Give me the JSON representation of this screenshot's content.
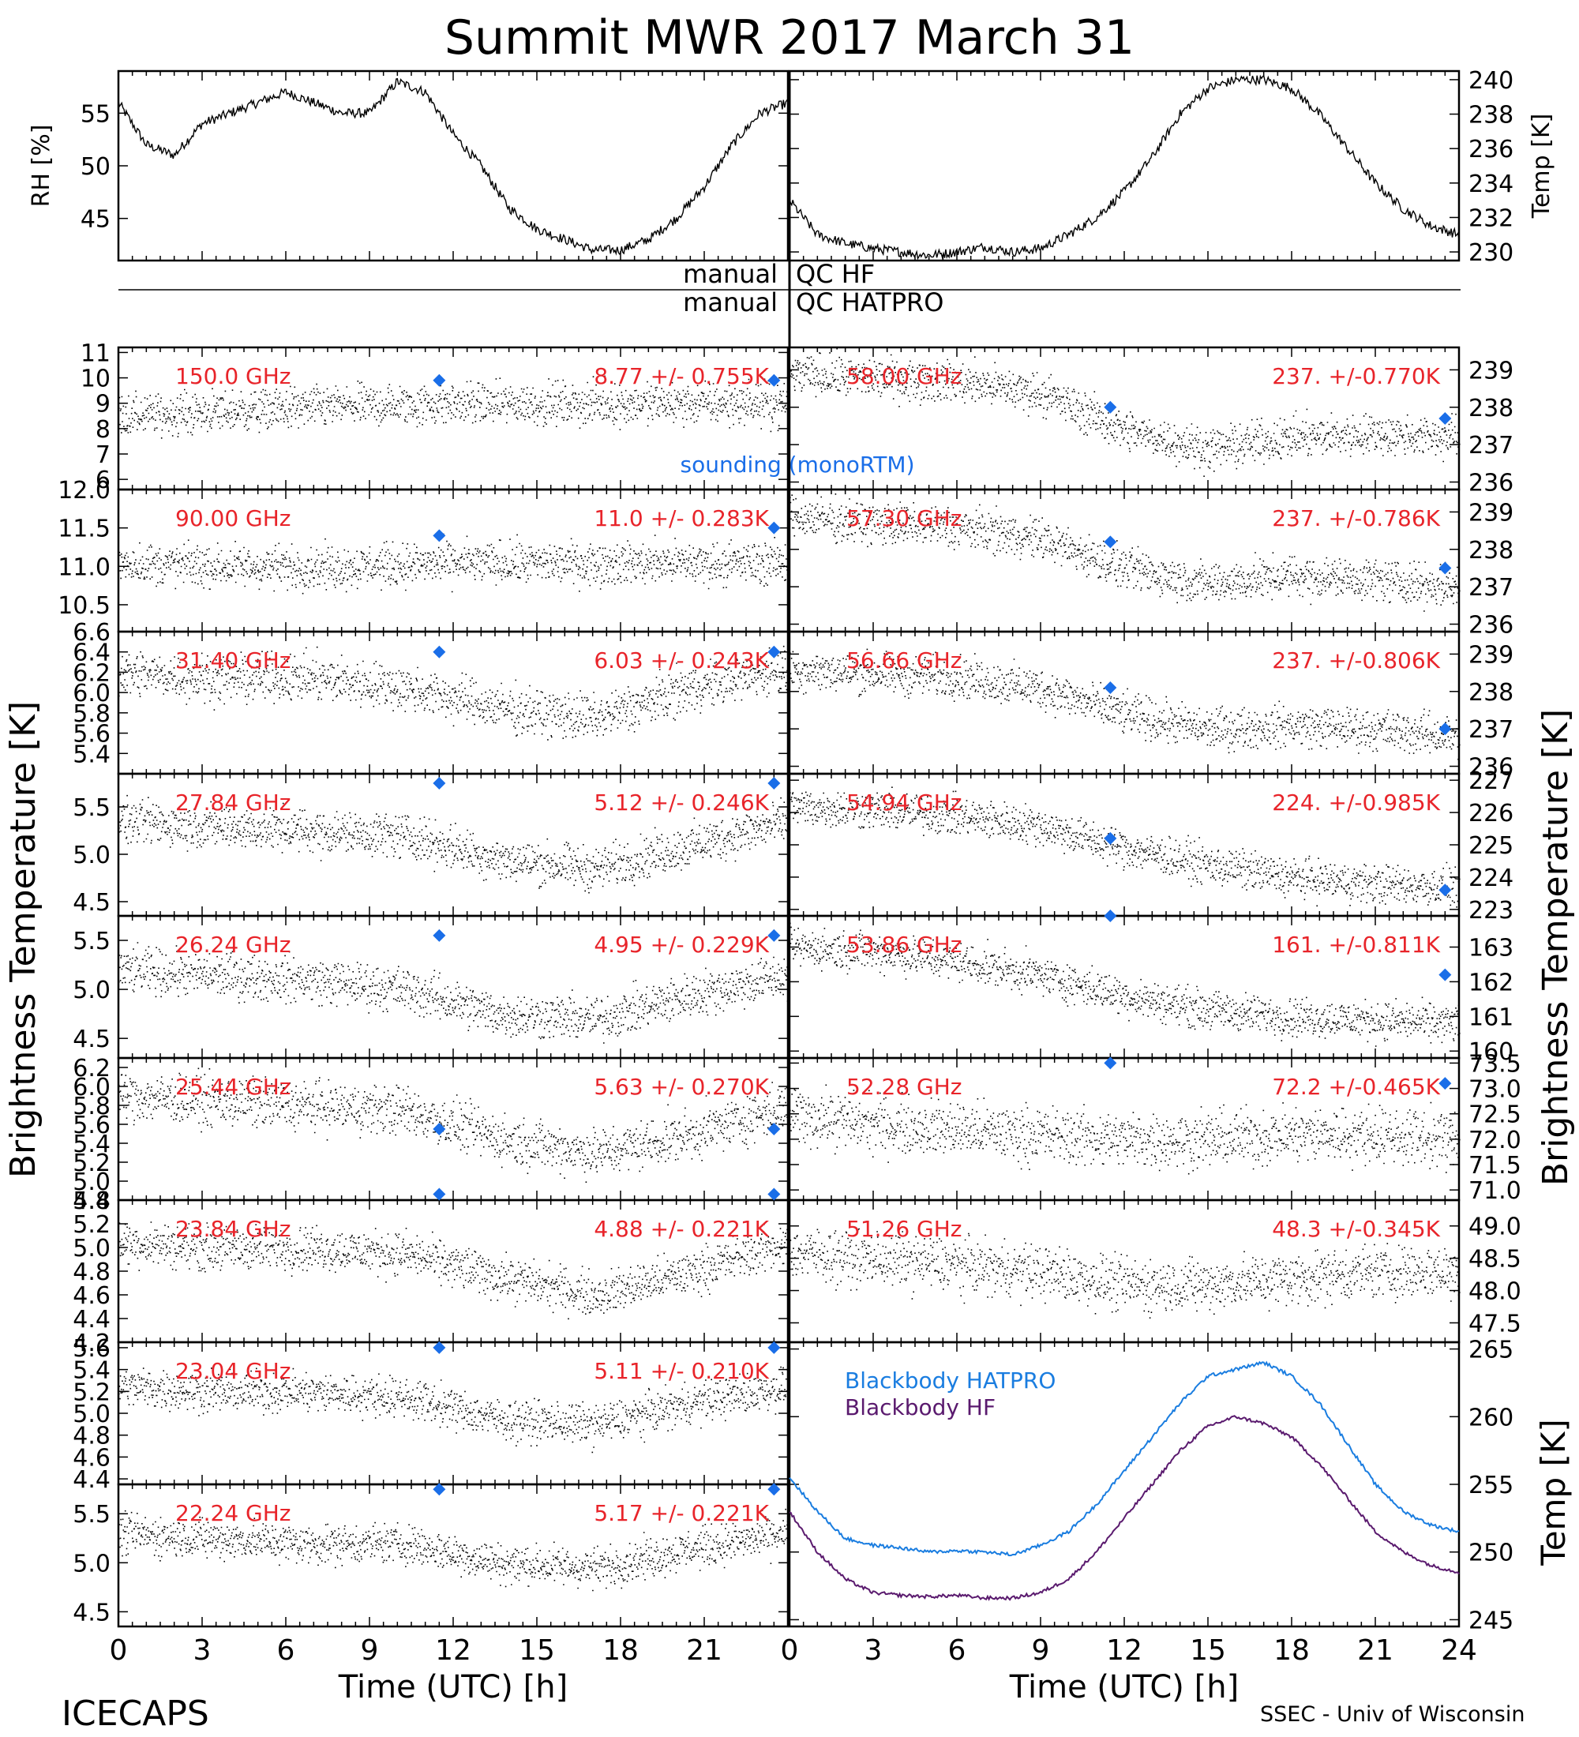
{
  "title": "Summit MWR 2017 March 31",
  "footer": {
    "left": "ICECAPS",
    "right": "SSEC - Univ of Wisconsin"
  },
  "colors": {
    "hatpro_line": "#1a7de0",
    "hf_line": "#5a1a6e",
    "label_red": "#e8242a",
    "sounding": "#1a6ee8",
    "data": "#000000"
  },
  "qc": {
    "left1": "manual",
    "right1": "QC HF",
    "left2": "manual",
    "right2": "QC HATPRO"
  },
  "xaxis": {
    "label": "Time (UTC) [h]",
    "range": [
      0,
      24
    ],
    "ticks_left": [
      "0",
      "3",
      "6",
      "9",
      "12",
      "15",
      "18",
      "21"
    ],
    "ticks_right": [
      "0",
      "3",
      "6",
      "9",
      "12",
      "15",
      "18",
      "21",
      "24"
    ]
  },
  "side_labels": {
    "left": "Brightness Temperature [K]",
    "right": "Brightness Temperature [K]",
    "bb_temp": "Temp [K]",
    "met_rh": "RH [%]",
    "met_temp": "Temp [K]"
  },
  "legend": {
    "sounding": "sounding (monoRTM)",
    "bb_hatpro": "Blackbody HATPRO",
    "bb_hf": "Blackbody HF"
  },
  "chart_data": [
    {
      "type": "line",
      "panel": "met-rh",
      "ylabel": "RH [%]",
      "ylim": [
        41,
        59
      ],
      "ticks": [
        "45",
        "50",
        "55"
      ],
      "x": [
        0,
        1,
        2,
        3,
        4,
        5,
        6,
        7,
        8,
        9,
        10,
        11,
        12,
        13,
        14,
        15,
        16,
        17,
        18,
        19,
        20,
        21,
        22,
        23,
        24
      ],
      "values": [
        56,
        52,
        51,
        54,
        55,
        56,
        57,
        56,
        55,
        55,
        58,
        57,
        53,
        50,
        46,
        44,
        43,
        42,
        42,
        43,
        45,
        48,
        52,
        55,
        56
      ]
    },
    {
      "type": "line",
      "panel": "met-temp",
      "ylabel": "Temp [K]",
      "ylim": [
        229.5,
        240.5
      ],
      "ticks": [
        "230",
        "232",
        "234",
        "236",
        "238",
        "240"
      ],
      "x": [
        0,
        1,
        2,
        3,
        4,
        5,
        6,
        7,
        8,
        9,
        10,
        11,
        12,
        13,
        14,
        15,
        16,
        17,
        18,
        19,
        20,
        21,
        22,
        23,
        24
      ],
      "values": [
        233,
        231,
        230.5,
        230.2,
        230,
        229.8,
        230,
        230.3,
        230,
        230.2,
        231,
        232,
        233.5,
        235.5,
        238,
        239.5,
        240,
        240,
        239.5,
        238,
        236,
        234,
        232.5,
        231.5,
        231
      ]
    },
    {
      "type": "scatter",
      "panel": "150.0",
      "label": "150.0 GHz",
      "stats": "8.77 +/- 0.755K",
      "ylim": [
        5.6,
        11.2
      ],
      "ticks": [
        "6",
        "7",
        "8",
        "9",
        "10",
        "11"
      ],
      "base": [
        8.5,
        8.7,
        8.9,
        9.0,
        9.0,
        9.0,
        9.0
      ],
      "noise": 0.9,
      "sounding": [
        9.9,
        9.9
      ]
    },
    {
      "type": "scatter",
      "panel": "90.00",
      "label": "90.00 GHz",
      "stats": "11.0 +/- 0.283K",
      "ylim": [
        10.15,
        12.0
      ],
      "ticks": [
        "10.5",
        "11.0",
        "11.5",
        "12.0"
      ],
      "base": [
        11.05,
        11.0,
        11.0,
        11.05,
        11.05,
        11.05,
        11.05
      ],
      "noise": 0.3,
      "sounding": [
        11.4,
        11.5
      ]
    },
    {
      "type": "scatter",
      "panel": "31.40",
      "label": "31.40 GHz",
      "stats": "6.03 +/- 0.243K",
      "ylim": [
        5.2,
        6.6
      ],
      "ticks": [
        "5.4",
        "5.6",
        "5.8",
        "6.0",
        "6.2",
        "6.4",
        "6.6"
      ],
      "base": [
        6.2,
        6.15,
        6.15,
        6.05,
        5.85,
        5.75,
        6.05,
        6.25
      ],
      "noise": 0.25,
      "sounding": [
        6.4,
        6.4
      ]
    },
    {
      "type": "scatter",
      "panel": "27.84",
      "label": "27.84 GHz",
      "stats": "5.12 +/- 0.246K",
      "ylim": [
        4.35,
        5.85
      ],
      "ticks": [
        "4.5",
        "5.0",
        "5.5"
      ],
      "base": [
        5.35,
        5.3,
        5.25,
        5.2,
        4.95,
        4.85,
        5.1,
        5.35
      ],
      "noise": 0.25,
      "sounding": [
        5.75,
        5.75
      ]
    },
    {
      "type": "scatter",
      "panel": "26.24",
      "label": "26.24 GHz",
      "stats": "4.95 +/- 0.229K",
      "ylim": [
        4.3,
        5.75
      ],
      "ticks": [
        "4.5",
        "5.0",
        "5.5"
      ],
      "base": [
        5.2,
        5.15,
        5.1,
        5.0,
        4.75,
        4.7,
        4.95,
        5.15
      ],
      "noise": 0.25,
      "sounding": [
        5.55,
        5.55
      ]
    },
    {
      "type": "scatter",
      "panel": "25.44",
      "label": "25.44 GHz",
      "stats": "5.63 +/- 0.270K",
      "ylim": [
        4.8,
        6.3
      ],
      "ticks": [
        "4.8",
        "5.0",
        "5.2",
        "5.4",
        "5.6",
        "5.8",
        "6.0",
        "6.2"
      ],
      "base": [
        5.9,
        5.85,
        5.8,
        5.75,
        5.45,
        5.3,
        5.5,
        5.8
      ],
      "noise": 0.28,
      "sounding": [
        5.55,
        5.55
      ]
    },
    {
      "type": "scatter",
      "panel": "23.84",
      "label": "23.84 GHz",
      "stats": "4.88 +/- 0.221K",
      "ylim": [
        4.2,
        5.4
      ],
      "ticks": [
        "4.2",
        "4.4",
        "4.6",
        "4.8",
        "5.0",
        "5.2",
        "5.4"
      ],
      "base": [
        5.05,
        5.0,
        5.0,
        4.95,
        4.75,
        4.6,
        4.8,
        5.05
      ],
      "noise": 0.2,
      "sounding": [
        5.45,
        5.45
      ]
    },
    {
      "type": "scatter",
      "panel": "23.04",
      "label": "23.04 GHz",
      "stats": "5.11 +/- 0.210K",
      "ylim": [
        4.35,
        5.65
      ],
      "ticks": [
        "4.4",
        "4.6",
        "4.8",
        "5.0",
        "5.2",
        "5.4",
        "5.6"
      ],
      "base": [
        5.25,
        5.2,
        5.2,
        5.15,
        4.95,
        4.9,
        5.1,
        5.25
      ],
      "noise": 0.2,
      "sounding": [
        5.6,
        5.6
      ]
    },
    {
      "type": "scatter",
      "panel": "22.24",
      "label": "22.24 GHz",
      "stats": "5.17 +/- 0.221K",
      "ylim": [
        4.35,
        5.8
      ],
      "ticks": [
        "4.5",
        "5.0",
        "5.5"
      ],
      "base": [
        5.3,
        5.25,
        5.2,
        5.2,
        5.0,
        4.95,
        5.15,
        5.3
      ],
      "noise": 0.22,
      "sounding": [
        5.75,
        5.75
      ]
    },
    {
      "type": "scatter",
      "panel": "58.00",
      "label": "58.00 GHz",
      "stats": "237. +/-0.770K",
      "ylim": [
        235.8,
        239.6
      ],
      "ticks": [
        "236",
        "237",
        "238",
        "239"
      ],
      "base": [
        238.9,
        238.8,
        238.7,
        238.4,
        237.4,
        236.9,
        237.2,
        237.3,
        237.2
      ],
      "noise": 0.6,
      "sounding": [
        238.0,
        237.7
      ]
    },
    {
      "type": "scatter",
      "panel": "57.30",
      "label": "57.30 GHz",
      "stats": "237. +/-0.786K",
      "ylim": [
        235.8,
        239.6
      ],
      "ticks": [
        "236",
        "237",
        "238",
        "239"
      ],
      "base": [
        238.9,
        238.7,
        238.6,
        238.3,
        237.5,
        237.1,
        237.3,
        237.2,
        237.0
      ],
      "noise": 0.6,
      "sounding": [
        238.2,
        237.5
      ]
    },
    {
      "type": "scatter",
      "panel": "56.66",
      "label": "56.66 GHz",
      "stats": "237. +/-0.806K",
      "ylim": [
        235.8,
        239.6
      ],
      "ticks": [
        "236",
        "237",
        "238",
        "239"
      ],
      "base": [
        238.6,
        238.5,
        238.4,
        238.1,
        237.4,
        237.0,
        237.1,
        237.0,
        236.8
      ],
      "noise": 0.6,
      "sounding": [
        238.1,
        237.0
      ]
    },
    {
      "type": "scatter",
      "panel": "54.94",
      "label": "54.94 GHz",
      "stats": "224. +/-0.985K",
      "ylim": [
        222.8,
        227.2
      ],
      "ticks": [
        "223",
        "224",
        "225",
        "226",
        "227"
      ],
      "base": [
        226.2,
        226.1,
        225.9,
        225.6,
        224.9,
        224.4,
        224.0,
        223.8,
        223.7
      ],
      "noise": 0.65,
      "sounding": [
        225.2,
        223.6
      ]
    },
    {
      "type": "scatter",
      "panel": "53.86",
      "label": "53.86 GHz",
      "stats": "161. +/-0.811K",
      "ylim": [
        159.8,
        163.9
      ],
      "ticks": [
        "160",
        "161",
        "162",
        "163"
      ],
      "base": [
        163.0,
        162.9,
        162.6,
        162.2,
        161.6,
        161.2,
        161.0,
        160.9,
        160.8
      ],
      "noise": 0.6,
      "sounding": [
        163.9,
        162.2
      ]
    },
    {
      "type": "scatter",
      "panel": "52.28",
      "label": "52.28 GHz",
      "stats": "72.2 +/-0.465K",
      "ylim": [
        70.8,
        73.6
      ],
      "ticks": [
        "71.0",
        "71.5",
        "72.0",
        "72.5",
        "73.0",
        "73.5"
      ],
      "base": [
        72.5,
        72.3,
        72.2,
        72.1,
        72.0,
        72.0,
        72.1,
        72.1,
        72.0
      ],
      "noise": 0.6,
      "sounding": [
        73.5,
        73.1
      ]
    },
    {
      "type": "scatter",
      "panel": "51.26",
      "label": "51.26 GHz",
      "stats": "48.3 +/-0.345K",
      "ylim": [
        47.2,
        49.4
      ],
      "ticks": [
        "47.5",
        "48.0",
        "48.5",
        "49.0"
      ],
      "base": [
        48.6,
        48.5,
        48.4,
        48.3,
        48.1,
        48.1,
        48.2,
        48.3,
        48.3
      ],
      "noise": 0.45,
      "sounding": []
    },
    {
      "type": "line",
      "panel": "blackbody",
      "ylabel": "Temp [K]",
      "ylim": [
        244.5,
        265.5
      ],
      "ticks": [
        "245",
        "250",
        "255",
        "260",
        "265"
      ],
      "x": [
        0,
        1,
        2,
        3,
        4,
        5,
        6,
        7,
        8,
        9,
        10,
        11,
        12,
        13,
        14,
        15,
        16,
        17,
        18,
        19,
        20,
        21,
        22,
        23,
        24
      ],
      "series": [
        {
          "name": "Blackbody HATPRO",
          "values": [
            255.5,
            253,
            251,
            250.5,
            250.3,
            250,
            250.1,
            250,
            249.8,
            250.5,
            251.5,
            253.5,
            256,
            258.5,
            261,
            263,
            263.5,
            264,
            263,
            261,
            258,
            255,
            253,
            252,
            251.5
          ]
        },
        {
          "name": "Blackbody HF",
          "values": [
            253,
            250,
            248,
            247,
            246.8,
            246.7,
            246.8,
            246.6,
            246.6,
            247,
            248,
            250,
            252.5,
            255,
            257.5,
            259.3,
            260,
            259.5,
            258.5,
            256.5,
            254,
            251.5,
            250,
            249,
            248.5
          ]
        }
      ]
    }
  ]
}
